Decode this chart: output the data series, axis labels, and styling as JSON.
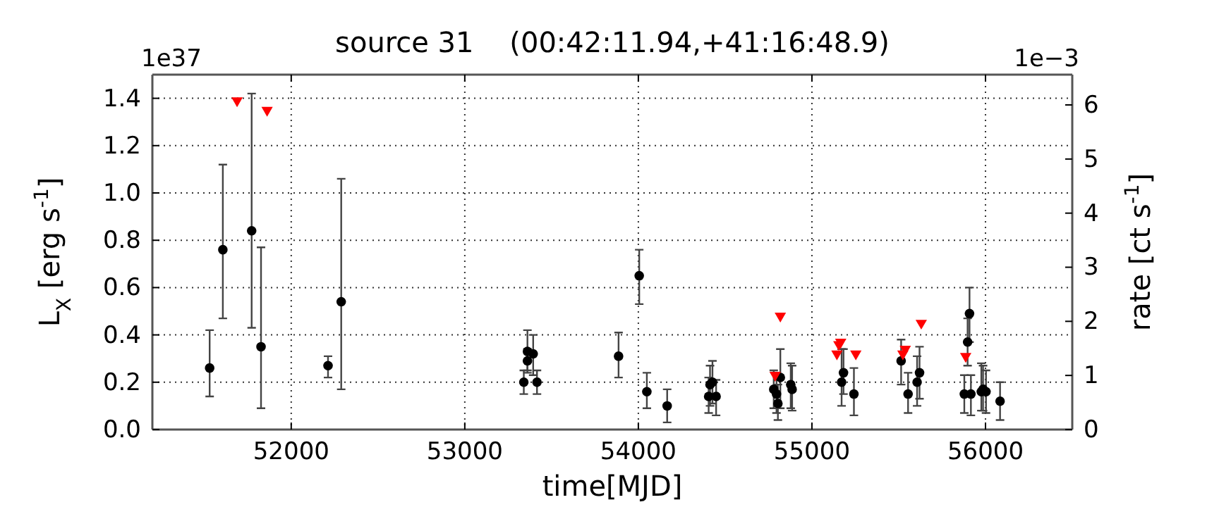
{
  "chart_data": {
    "type": "scatter",
    "title": "source 31    (00:42:11.94,+41:16:48.9)",
    "xlabel": "time[MJD]",
    "ylabel": "L$_{X}$ [erg s$^{-1}$]",
    "y2label": "rate [ct s$^{-1}$]",
    "annotations": [
      "1e37",
      "1e−3"
    ],
    "xlim": [
      51200,
      56500
    ],
    "xticks": [
      52000,
      53000,
      54000,
      55000,
      56000
    ],
    "ylim": [
      0,
      1.5
    ],
    "yticks": [
      {
        "value": 0,
        "label": "0.0"
      },
      {
        "value": 0.2,
        "label": "0.2"
      },
      {
        "value": 0.4,
        "label": "0.4"
      },
      {
        "value": 0.6,
        "label": "0.6"
      },
      {
        "value": 0.8,
        "label": "0.8"
      },
      {
        "value": 1.0,
        "label": "1.0"
      },
      {
        "value": 1.2,
        "label": "1.2"
      },
      {
        "value": 1.4,
        "label": "1.4"
      }
    ],
    "y2lim": [
      0,
      6.56
    ],
    "y2ticks": [
      0,
      1,
      2,
      3,
      4,
      5,
      6
    ],
    "grid": true,
    "series": [
      {
        "color": "#000000",
        "marker": "circle",
        "x": [
          51530,
          51606,
          51772,
          51826,
          52212,
          52288,
          53340,
          53361,
          53361,
          53394,
          53416,
          53886,
          54005,
          54049,
          54166,
          54405,
          54413,
          54427,
          54448,
          54780,
          54796,
          54804,
          54818,
          54878,
          54886,
          55171,
          55182,
          55242,
          55514,
          55554,
          55606,
          55620,
          55878,
          55897,
          55908,
          55916,
          55976,
          55986,
          56003,
          56084
        ],
        "values": [
          0.26,
          0.76,
          0.84,
          0.35,
          0.27,
          0.54,
          0.2,
          0.33,
          0.29,
          0.32,
          0.2,
          0.31,
          0.65,
          0.16,
          0.1,
          0.14,
          0.19,
          0.2,
          0.14,
          0.17,
          0.15,
          0.11,
          0.22,
          0.19,
          0.17,
          0.2,
          0.24,
          0.15,
          0.29,
          0.15,
          0.2,
          0.24,
          0.15,
          0.37,
          0.49,
          0.15,
          0.16,
          0.17,
          0.16,
          0.12
        ],
        "errors": [
          [
            0.14,
            0.42
          ],
          [
            0.47,
            1.12
          ],
          [
            0.43,
            1.42
          ],
          [
            0.09,
            0.77
          ],
          [
            0.22,
            0.31
          ],
          [
            0.17,
            1.06
          ],
          [
            0.15,
            0.25
          ],
          [
            0.25,
            0.42
          ],
          [
            0.24,
            0.34
          ],
          [
            0.23,
            0.4
          ],
          [
            0.15,
            0.25
          ],
          [
            0.22,
            0.41
          ],
          [
            0.53,
            0.76
          ],
          [
            0.09,
            0.24
          ],
          [
            0.03,
            0.17
          ],
          [
            0.07,
            0.22
          ],
          [
            0.1,
            0.27
          ],
          [
            0.11,
            0.29
          ],
          [
            0.06,
            0.21
          ],
          [
            0.09,
            0.25
          ],
          [
            0.07,
            0.23
          ],
          [
            0.04,
            0.19
          ],
          [
            0.09,
            0.34
          ],
          [
            0.09,
            0.28
          ],
          [
            0.08,
            0.27
          ],
          [
            0.1,
            0.34
          ],
          [
            0.15,
            0.34
          ],
          [
            0.06,
            0.26
          ],
          [
            0.19,
            0.38
          ],
          [
            0.07,
            0.24
          ],
          [
            0.1,
            0.31
          ],
          [
            0.13,
            0.35
          ],
          [
            0.07,
            0.23
          ],
          [
            0.27,
            0.47
          ],
          [
            0.37,
            0.6
          ],
          [
            0.06,
            0.23
          ],
          [
            0.08,
            0.28
          ],
          [
            0.08,
            0.27
          ],
          [
            0.07,
            0.25
          ],
          [
            0.04,
            0.2
          ]
        ]
      },
      {
        "color": "#ff0000",
        "marker": "triangle",
        "x": [
          51688,
          51861,
          54788,
          54818,
          55144,
          55155,
          55166,
          55253,
          55524,
          55538,
          55630,
          55886
        ],
        "values": [
          1.39,
          1.35,
          0.23,
          0.48,
          0.32,
          0.36,
          0.37,
          0.32,
          0.32,
          0.34,
          0.45,
          0.31
        ]
      }
    ]
  }
}
